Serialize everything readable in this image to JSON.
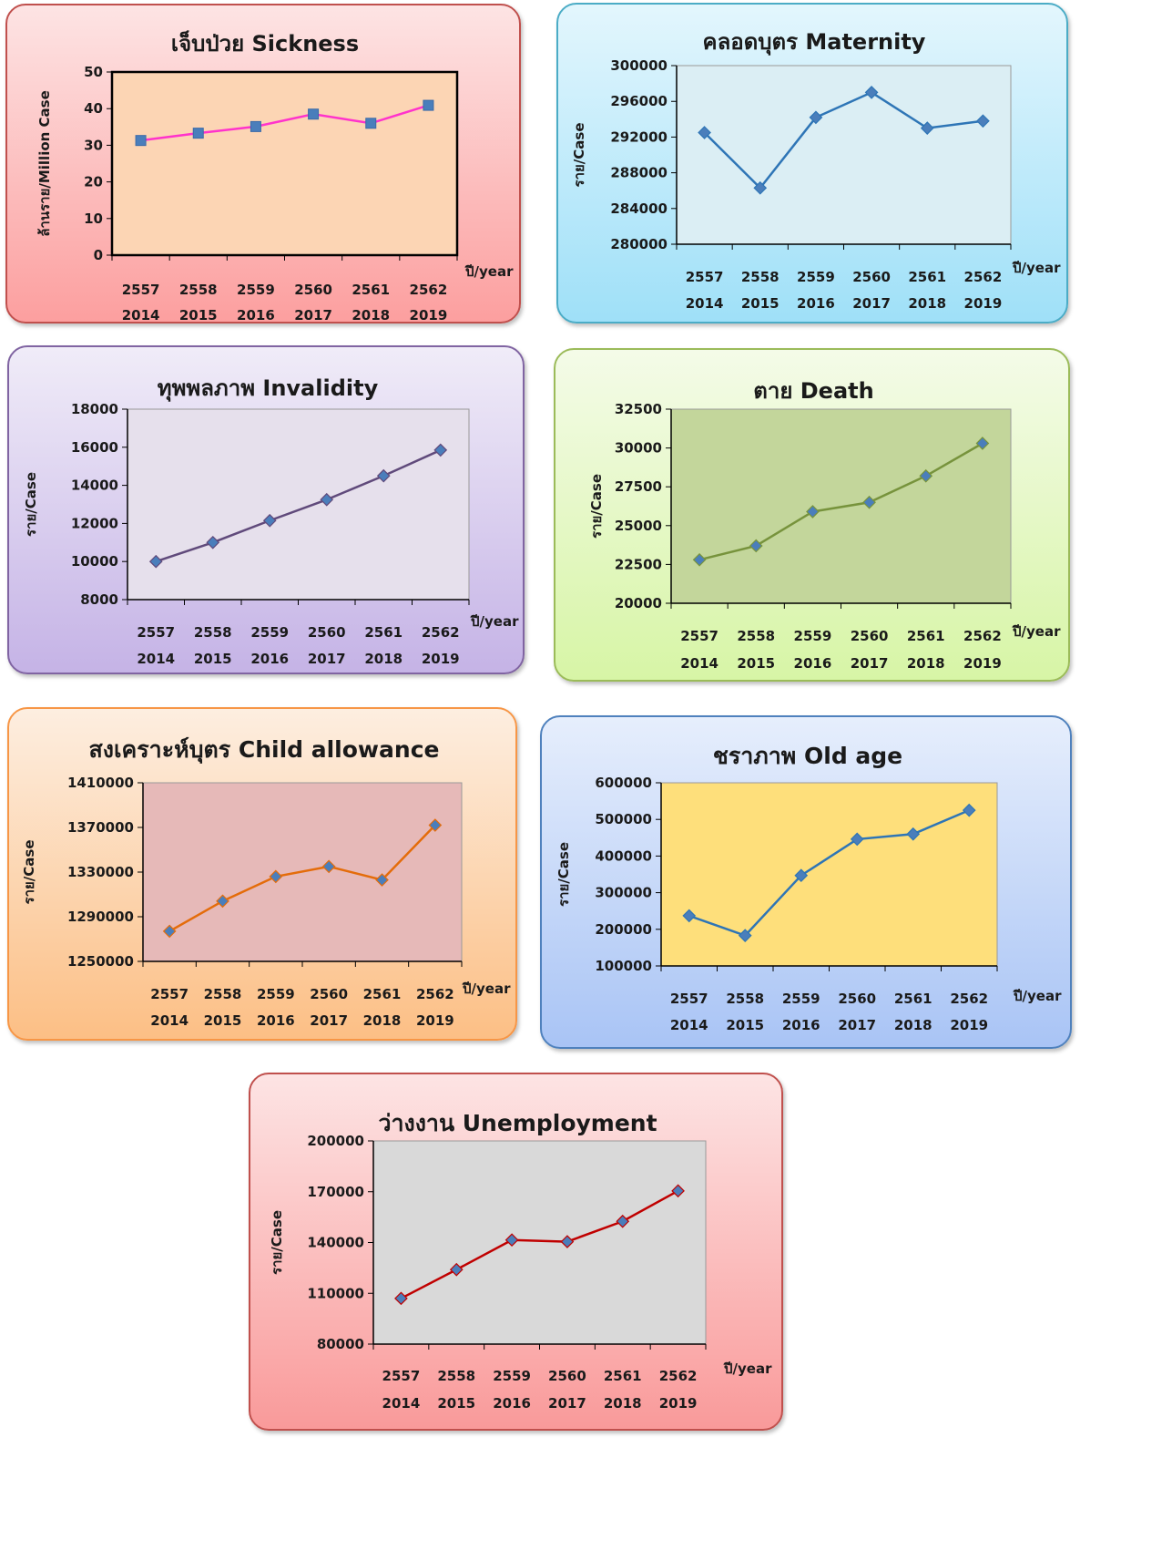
{
  "chart_data": [
    {
      "id": "sickness",
      "type": "line",
      "title": "เจ็บป่วย Sickness",
      "ylabel": "ล้านราย/Million Case",
      "xlabel": "ปี/year",
      "categories": [
        [
          "2557",
          "2014"
        ],
        [
          "2558",
          "2015"
        ],
        [
          "2559",
          "2016"
        ],
        [
          "2560",
          "2017"
        ],
        [
          "2561",
          "2018"
        ],
        [
          "2562",
          "2019"
        ]
      ],
      "values": [
        31.3,
        33.3,
        35.1,
        38.5,
        36.0,
        40.9
      ],
      "ylim": [
        0,
        50
      ],
      "yticks": [
        0,
        10,
        20,
        30,
        40,
        50
      ],
      "marker": "square",
      "colors": {
        "line": "#ff33cc",
        "marker": "#4a7ebb",
        "plot_bg": "#fcd5b4",
        "panel_top": "#fde4e4",
        "panel_bottom": "#fc9f9f",
        "border": "#c0504d"
      }
    },
    {
      "id": "maternity",
      "type": "line",
      "title": "คลอดบุตร Maternity",
      "ylabel": "ราย/Case",
      "xlabel": "ปี/year",
      "categories": [
        [
          "2557",
          "2014"
        ],
        [
          "2558",
          "2015"
        ],
        [
          "2559",
          "2016"
        ],
        [
          "2560",
          "2017"
        ],
        [
          "2561",
          "2018"
        ],
        [
          "2562",
          "2019"
        ]
      ],
      "values": [
        292500,
        286300,
        294200,
        297000,
        293000,
        293800
      ],
      "ylim": [
        280000,
        300000
      ],
      "yticks": [
        280000,
        284000,
        288000,
        292000,
        296000,
        300000
      ],
      "marker": "diamond",
      "colors": {
        "line": "#2e75b6",
        "marker": "#4a7ebb",
        "plot_bg": "#dbeef4",
        "panel_top": "#e3f6fd",
        "panel_bottom": "#9fe0f8",
        "border": "#4bacc6"
      }
    },
    {
      "id": "invalidity",
      "type": "line",
      "title": "ทุพพลภาพ Invalidity",
      "ylabel": "ราย/Case",
      "xlabel": "ปี/year",
      "categories": [
        [
          "2557",
          "2014"
        ],
        [
          "2558",
          "2015"
        ],
        [
          "2559",
          "2016"
        ],
        [
          "2560",
          "2017"
        ],
        [
          "2561",
          "2018"
        ],
        [
          "2562",
          "2019"
        ]
      ],
      "values": [
        10000,
        11000,
        12150,
        13250,
        14500,
        15850
      ],
      "ylim": [
        8000,
        18000
      ],
      "yticks": [
        8000,
        10000,
        12000,
        14000,
        16000,
        18000
      ],
      "marker": "diamond",
      "colors": {
        "line": "#604a7b",
        "marker": "#4a7ebb",
        "plot_bg": "#e6e0ec",
        "panel_top": "#f0ecf8",
        "panel_bottom": "#c5b3e6",
        "border": "#8064a2"
      }
    },
    {
      "id": "death",
      "type": "line",
      "title": "ตาย Death",
      "ylabel": "ราย/Case",
      "xlabel": "ปี/year",
      "categories": [
        [
          "2557",
          "2014"
        ],
        [
          "2558",
          "2015"
        ],
        [
          "2559",
          "2016"
        ],
        [
          "2560",
          "2017"
        ],
        [
          "2561",
          "2018"
        ],
        [
          "2562",
          "2019"
        ]
      ],
      "values": [
        22800,
        23700,
        25900,
        26500,
        28200,
        30300
      ],
      "ylim": [
        20000,
        32500
      ],
      "yticks": [
        20000,
        22500,
        25000,
        27500,
        30000,
        32500
      ],
      "marker": "diamond",
      "colors": {
        "line": "#77933c",
        "marker": "#4a7ebb",
        "plot_bg": "#c3d69b",
        "panel_top": "#f4fbe8",
        "panel_bottom": "#d7f5a6",
        "border": "#9bbb59"
      }
    },
    {
      "id": "child_allowance",
      "type": "line",
      "title": "สงเคราะห์บุตร Child allowance",
      "ylabel": "ราย/Case",
      "xlabel": "ปี/year",
      "categories": [
        [
          "2557",
          "2014"
        ],
        [
          "2558",
          "2015"
        ],
        [
          "2559",
          "2016"
        ],
        [
          "2560",
          "2017"
        ],
        [
          "2561",
          "2018"
        ],
        [
          "2562",
          "2019"
        ]
      ],
      "values": [
        1277000,
        1304000,
        1326000,
        1335000,
        1323000,
        1372000
      ],
      "ylim": [
        1250000,
        1410000
      ],
      "yticks": [
        1250000,
        1290000,
        1330000,
        1370000,
        1410000
      ],
      "marker": "diamond",
      "colors": {
        "line": "#e46c0a",
        "marker": "#4a7ebb",
        "plot_bg": "#e6b9b8",
        "panel_top": "#fdeee0",
        "panel_bottom": "#fcbf85",
        "border": "#f79646"
      }
    },
    {
      "id": "old_age",
      "type": "line",
      "title": "ชราภาพ Old age",
      "ylabel": "ราย/Case",
      "xlabel": "ปี/year",
      "categories": [
        [
          "2557",
          "2014"
        ],
        [
          "2558",
          "2015"
        ],
        [
          "2559",
          "2016"
        ],
        [
          "2560",
          "2017"
        ],
        [
          "2561",
          "2018"
        ],
        [
          "2562",
          "2019"
        ]
      ],
      "values": [
        237000,
        183000,
        347000,
        446000,
        460000,
        525000
      ],
      "ylim": [
        100000,
        600000
      ],
      "yticks": [
        100000,
        200000,
        300000,
        400000,
        500000,
        600000
      ],
      "marker": "diamond",
      "colors": {
        "line": "#2e75b6",
        "marker": "#4a7ebb",
        "plot_bg": "#fedf7b",
        "panel_top": "#e6eefc",
        "panel_bottom": "#a9c4f5",
        "border": "#4f81bd"
      }
    },
    {
      "id": "unemployment",
      "type": "line",
      "title": "ว่างงาน Unemployment",
      "ylabel": "ราย/Case",
      "xlabel": "ปี/year",
      "categories": [
        [
          "2557",
          "2014"
        ],
        [
          "2558",
          "2015"
        ],
        [
          "2559",
          "2016"
        ],
        [
          "2560",
          "2017"
        ],
        [
          "2561",
          "2018"
        ],
        [
          "2562",
          "2019"
        ]
      ],
      "values": [
        107000,
        124000,
        141500,
        140500,
        152500,
        170500
      ],
      "ylim": [
        80000,
        200000
      ],
      "yticks": [
        80000,
        110000,
        140000,
        170000,
        200000
      ],
      "marker": "diamond",
      "colors": {
        "line": "#c00000",
        "marker": "#4a7ebb",
        "plot_bg": "#d9d9d9",
        "panel_top": "#fde4e4",
        "panel_bottom": "#f99a9a",
        "border": "#c0504d"
      }
    }
  ]
}
